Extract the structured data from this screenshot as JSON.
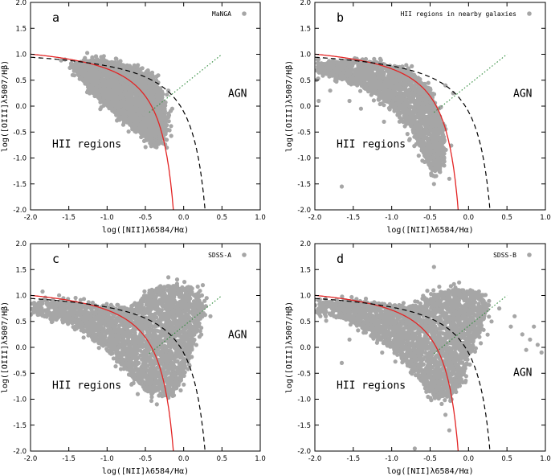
{
  "chart_data": [
    {
      "type": "scatter",
      "panel_letter": "a",
      "legend": "MaNGA",
      "xlabel": "log([NII]λ6584/Hα)",
      "ylabel": "log([OIII]λ5007/Hβ)",
      "xlim": [
        -2.0,
        1.0
      ],
      "ylim": [
        -2.0,
        2.0
      ],
      "xticks": [
        "-2.0",
        "-1.5",
        "-1.0",
        "-0.5",
        "0.0",
        "0.5",
        "1.0"
      ],
      "yticks": [
        "-2.0",
        "-1.5",
        "-1.0",
        "-0.5",
        "0.0",
        "0.5",
        "1.0",
        "1.5",
        "2.0"
      ],
      "region_labels": {
        "hii": "HII regions",
        "agn": "AGN"
      },
      "point_color": "#a6a6a6",
      "cloud": [
        [
          -1.35,
          0.8
        ],
        [
          -1.2,
          0.9
        ],
        [
          -0.9,
          0.85
        ],
        [
          -0.6,
          0.7
        ],
        [
          -0.4,
          0.5
        ],
        [
          -0.28,
          0.2
        ],
        [
          -0.22,
          -0.3
        ],
        [
          -0.27,
          -0.6
        ],
        [
          -0.35,
          -0.75
        ],
        [
          -0.55,
          -0.55
        ],
        [
          -0.8,
          -0.25
        ],
        [
          -1.05,
          0.05
        ],
        [
          -1.3,
          0.45
        ],
        [
          -1.45,
          0.75
        ]
      ],
      "outliers": [
        [
          -1.55,
          0.9
        ],
        [
          -1.47,
          0.82
        ],
        [
          -1.4,
          0.75
        ],
        [
          -1.6,
          0.88
        ],
        [
          -1.25,
          0.3
        ],
        [
          -0.22,
          -0.8
        ],
        [
          -0.15,
          -0.05
        ],
        [
          -0.2,
          0.3
        ],
        [
          -1.45,
          0.6
        ]
      ],
      "dense_region": [
        [
          -0.9,
          0.3
        ],
        [
          -0.6,
          0.1
        ]
      ]
    },
    {
      "type": "scatter",
      "panel_letter": "b",
      "legend": "HII regions in nearby galaxies",
      "xlabel": "log([NII]λ6584/Hα)",
      "ylabel": "log([OIII]λ5007/Hβ)",
      "xlim": [
        -2.0,
        1.0
      ],
      "ylim": [
        -2.0,
        2.0
      ],
      "xticks": [
        "-2.0",
        "-1.5",
        "-1.0",
        "-0.5",
        "0.0",
        "0.5",
        "1.0"
      ],
      "yticks": [
        "-2.0",
        "-1.5",
        "-1.0",
        "-0.5",
        "0.0",
        "0.5",
        "1.0",
        "1.5",
        "2.0"
      ],
      "region_labels": {
        "hii": "HII regions",
        "agn": "AGN"
      },
      "point_color": "#a6a6a6",
      "cloud": [
        [
          -1.95,
          0.82
        ],
        [
          -1.6,
          0.88
        ],
        [
          -1.2,
          0.85
        ],
        [
          -0.9,
          0.75
        ],
        [
          -0.65,
          0.55
        ],
        [
          -0.5,
          0.3
        ],
        [
          -0.38,
          -0.2
        ],
        [
          -0.3,
          -0.7
        ],
        [
          -0.35,
          -1.1
        ],
        [
          -0.45,
          -1.3
        ],
        [
          -0.6,
          -0.9
        ],
        [
          -0.75,
          -0.4
        ],
        [
          -1.0,
          0.0
        ],
        [
          -1.3,
          0.3
        ],
        [
          -1.7,
          0.55
        ],
        [
          -1.95,
          0.65
        ]
      ],
      "outliers": [
        [
          -1.65,
          -1.55
        ],
        [
          -1.55,
          0.1
        ],
        [
          -1.4,
          -0.05
        ],
        [
          -1.8,
          0.3
        ],
        [
          -0.25,
          -1.4
        ],
        [
          -0.2,
          0.25
        ],
        [
          -0.45,
          -1.5
        ],
        [
          -1.1,
          -0.3
        ],
        [
          -1.95,
          0.1
        ],
        [
          -0.3,
          0.4
        ]
      ],
      "dense_region": [
        [
          -1.2,
          0.6
        ],
        [
          -0.55,
          0.0
        ]
      ]
    },
    {
      "type": "scatter",
      "panel_letter": "c",
      "legend": "SDSS-A",
      "xlabel": "log([NII]λ6584/Hα)",
      "ylabel": "log([OIII]λ5007/Hβ)",
      "xlim": [
        -2.0,
        1.0
      ],
      "ylim": [
        -2.0,
        2.0
      ],
      "xticks": [
        "-2.0",
        "-1.5",
        "-1.0",
        "-0.5",
        "0.0",
        "0.5",
        "1.0"
      ],
      "yticks": [
        "-2.0",
        "-1.5",
        "-1.0",
        "-0.5",
        "0.0",
        "0.5",
        "1.0",
        "1.5",
        "2.0"
      ],
      "region_labels": {
        "hii": "HII regions",
        "agn": "AGN"
      },
      "point_color": "#a6a6a6",
      "cloud": [
        [
          -1.95,
          0.85
        ],
        [
          -1.5,
          0.88
        ],
        [
          -1.0,
          0.8
        ],
        [
          -0.65,
          0.75
        ],
        [
          -0.45,
          1.1
        ],
        [
          -0.2,
          1.2
        ],
        [
          0.1,
          1.15
        ],
        [
          0.25,
          0.85
        ],
        [
          0.2,
          0.4
        ],
        [
          0.1,
          -0.1
        ],
        [
          0.0,
          -0.5
        ],
        [
          -0.1,
          -0.8
        ],
        [
          -0.25,
          -0.95
        ],
        [
          -0.45,
          -0.9
        ],
        [
          -0.65,
          -0.6
        ],
        [
          -0.9,
          -0.2
        ],
        [
          -1.2,
          0.2
        ],
        [
          -1.55,
          0.5
        ],
        [
          -1.95,
          0.65
        ]
      ],
      "outliers": [
        [
          -0.35,
          -1.1
        ],
        [
          0.3,
          0.95
        ],
        [
          0.25,
          1.2
        ],
        [
          -0.2,
          1.35
        ],
        [
          -1.7,
          0.9
        ],
        [
          0.35,
          0.6
        ],
        [
          -0.6,
          -0.9
        ]
      ],
      "dense_region": [
        [
          -0.9,
          0.2
        ],
        [
          -0.4,
          -0.2
        ]
      ]
    },
    {
      "type": "scatter",
      "panel_letter": "d",
      "legend": "SDSS-B",
      "xlabel": "log([NII]λ6584/Hα)",
      "ylabel": "log([OIII]λ5007/Hβ)",
      "xlim": [
        -2.0,
        1.0
      ],
      "ylim": [
        -2.0,
        2.0
      ],
      "xticks": [
        "-2.0",
        "-1.5",
        "-1.0",
        "-0.5",
        "0.0",
        "0.5",
        "1.0"
      ],
      "yticks": [
        "-2.0",
        "-1.5",
        "-1.0",
        "-0.5",
        "0.0",
        "0.5",
        "1.0",
        "1.5",
        "2.0"
      ],
      "region_labels": {
        "hii": "HII regions",
        "agn": "AGN"
      },
      "point_color": "#a6a6a6",
      "cloud": [
        [
          -1.95,
          0.88
        ],
        [
          -1.5,
          0.9
        ],
        [
          -1.0,
          0.82
        ],
        [
          -0.6,
          0.8
        ],
        [
          -0.45,
          1.05
        ],
        [
          -0.2,
          1.12
        ],
        [
          0.1,
          1.08
        ],
        [
          0.25,
          0.8
        ],
        [
          0.15,
          0.3
        ],
        [
          0.0,
          -0.2
        ],
        [
          -0.1,
          -0.7
        ],
        [
          -0.25,
          -0.95
        ],
        [
          -0.45,
          -0.95
        ],
        [
          -0.65,
          -0.6
        ],
        [
          -0.9,
          -0.2
        ],
        [
          -1.2,
          0.2
        ],
        [
          -1.55,
          0.5
        ],
        [
          -1.95,
          0.68
        ]
      ],
      "outliers": [
        [
          -0.45,
          1.55
        ],
        [
          0.4,
          0.75
        ],
        [
          0.55,
          0.4
        ],
        [
          0.7,
          0.25
        ],
        [
          0.8,
          0.15
        ],
        [
          0.9,
          0.05
        ],
        [
          0.95,
          -0.1
        ],
        [
          0.6,
          0.6
        ],
        [
          -1.55,
          0.15
        ],
        [
          -1.65,
          -0.3
        ],
        [
          -0.7,
          -1.95
        ],
        [
          -0.3,
          -1.3
        ],
        [
          -0.25,
          -1.6
        ],
        [
          0.3,
          0.5
        ],
        [
          0.85,
          0.4
        ],
        [
          0.75,
          -0.05
        ]
      ],
      "dense_region": [
        [
          -0.9,
          0.2
        ],
        [
          -0.4,
          -0.2
        ]
      ]
    }
  ]
}
